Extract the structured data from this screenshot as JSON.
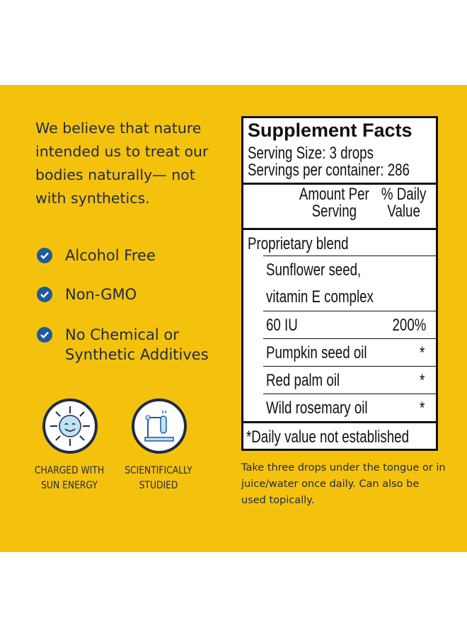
{
  "colors": {
    "background": "#f4c20d",
    "text": "#1f2a44",
    "check": "#1e5a9e"
  },
  "intro": "We believe that nature intended us to treat our bodies naturally— not with synthetics.",
  "features": [
    {
      "icon": "check-circle-icon",
      "label": "Alcohol Free"
    },
    {
      "icon": "check-circle-icon",
      "label": "Non-GMO"
    },
    {
      "icon": "check-circle-icon",
      "label": "No Chemical or Synthetic Additives"
    }
  ],
  "badges": [
    {
      "icon": "smiling-sun-icon",
      "line1": "CHARGED WITH",
      "line2": "SUN ENERGY"
    },
    {
      "icon": "test-tube-stand-icon",
      "line1": "SCIENTIFICALLY",
      "line2": "STUDIED"
    }
  ],
  "facts": {
    "title": "Supplement Facts",
    "serving_size": "Serving Size: 3 drops",
    "servings": "Servings per container: 286",
    "col_amount": [
      "Amount Per",
      "Serving"
    ],
    "col_dv": [
      "% Daily",
      "Value"
    ],
    "rows": [
      {
        "name": "Proprietary blend",
        "dv": ""
      },
      {
        "name": "Sunflower seed,",
        "dv": ""
      },
      {
        "name": "vitamin E complex",
        "dv": ""
      },
      {
        "name": "60 IU",
        "dv": "200%"
      },
      {
        "name": "Pumpkin seed oil",
        "dv": "*"
      },
      {
        "name": "Red palm oil",
        "dv": "*"
      },
      {
        "name": "Wild rosemary oil",
        "dv": "*"
      }
    ],
    "footnote": "*Daily value not established"
  },
  "directions": "Take three drops under the tongue or in juice/water once daily. Can also be used topically."
}
